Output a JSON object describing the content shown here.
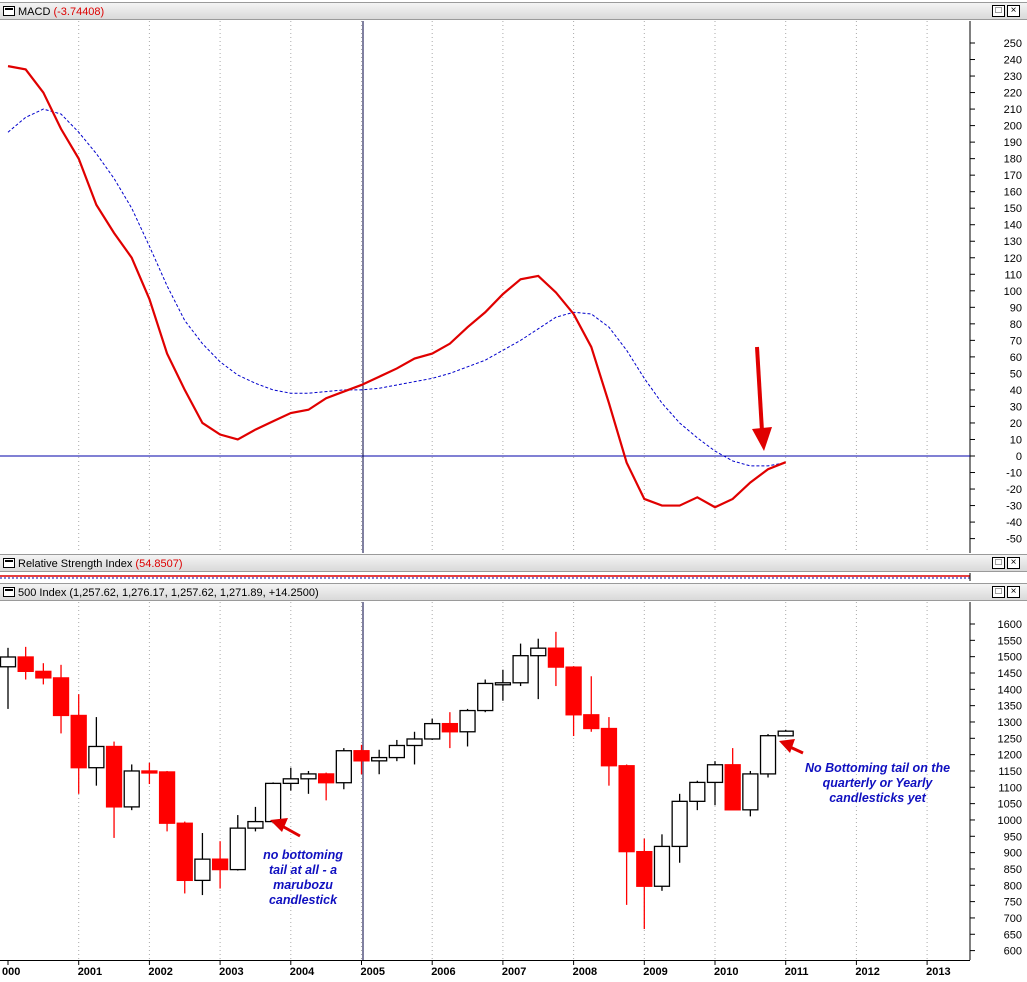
{
  "macd_panel": {
    "title": "MACD",
    "value": "(-3.74408)"
  },
  "rsi_panel": {
    "title": "Relative Strength Index",
    "value": "(54.8507)"
  },
  "spx_panel": {
    "title": "500 Index (1,257.62, 1,276.17, 1,257.62, 1,271.89, +14.2500)"
  },
  "window_buttons": {
    "restore": "□",
    "close": "×"
  },
  "annotations": {
    "left_note": [
      "no bottoming",
      "tail at all -  a",
      "marubozu",
      "candlestick"
    ],
    "right_note": [
      "No Bottoming tail on the",
      "quarterly or Yearly",
      "candlesticks yet"
    ]
  },
  "colors": {
    "bull": "#ffffff",
    "bear": "#ff0000",
    "macd_line": "#e00000",
    "signal_line": "#0000cc",
    "zero_line": "#0000aa",
    "arrow": "#e00000",
    "note_text": "#1010c0"
  },
  "chart_data": [
    {
      "type": "line",
      "title": "MACD",
      "x_label_years": [
        "000",
        "2001",
        "2002",
        "2003",
        "2004",
        "2005",
        "2006",
        "2007",
        "2008",
        "2009",
        "2010",
        "2011",
        "2012",
        "2013"
      ],
      "ylim": [
        -55,
        260
      ],
      "yticks": [
        250,
        240,
        230,
        220,
        210,
        200,
        190,
        180,
        170,
        160,
        150,
        140,
        130,
        120,
        110,
        100,
        90,
        80,
        70,
        60,
        50,
        40,
        30,
        20,
        10,
        0,
        -10,
        -20,
        -30,
        -40,
        -50
      ],
      "series": [
        {
          "name": "MACD",
          "x": [
            2000.0,
            2000.25,
            2000.5,
            2000.75,
            2001.0,
            2001.25,
            2001.5,
            2001.75,
            2002.0,
            2002.25,
            2002.5,
            2002.75,
            2003.0,
            2003.25,
            2003.5,
            2003.75,
            2004.0,
            2004.25,
            2004.5,
            2004.75,
            2005.0,
            2005.25,
            2005.5,
            2005.75,
            2006.0,
            2006.25,
            2006.5,
            2006.75,
            2007.0,
            2007.25,
            2007.5,
            2007.75,
            2008.0,
            2008.25,
            2008.5,
            2008.75,
            2009.0,
            2009.25,
            2009.5,
            2009.75,
            2010.0,
            2010.25,
            2010.5,
            2010.75,
            2011.0
          ],
          "values": [
            236,
            234,
            220,
            198,
            180,
            152,
            135,
            120,
            95,
            62,
            40,
            20,
            13,
            10,
            16,
            21,
            26,
            28,
            35,
            39,
            43,
            48,
            53,
            59,
            62,
            68,
            78,
            87,
            98,
            107,
            109,
            99,
            86,
            66,
            32,
            -4,
            -26,
            -30,
            -30,
            -25,
            -31,
            -26,
            -16,
            -8,
            -3.74
          ]
        },
        {
          "name": "Signal",
          "x": [
            2000.0,
            2000.25,
            2000.5,
            2000.75,
            2001.0,
            2001.25,
            2001.5,
            2001.75,
            2002.0,
            2002.25,
            2002.5,
            2002.75,
            2003.0,
            2003.25,
            2003.5,
            2003.75,
            2004.0,
            2004.25,
            2004.5,
            2004.75,
            2005.0,
            2005.25,
            2005.5,
            2005.75,
            2006.0,
            2006.25,
            2006.5,
            2006.75,
            2007.0,
            2007.25,
            2007.5,
            2007.75,
            2008.0,
            2008.25,
            2008.5,
            2008.75,
            2009.0,
            2009.25,
            2009.5,
            2009.75,
            2010.0,
            2010.25,
            2010.5,
            2010.75,
            2011.0
          ],
          "values": [
            196,
            205,
            210,
            207,
            196,
            183,
            168,
            150,
            127,
            103,
            82,
            68,
            57,
            49,
            44,
            40,
            38,
            38,
            39,
            40,
            40,
            41,
            43,
            45,
            47,
            50,
            54,
            58,
            64,
            70,
            77,
            84,
            87,
            86,
            78,
            64,
            47,
            32,
            20,
            11,
            3,
            -3,
            -6,
            -6,
            -4
          ]
        }
      ],
      "zero_line": 0,
      "annotation": "red arrow pointing to MACD crossover near 2011"
    },
    {
      "type": "line",
      "title": "Relative Strength Index",
      "value": 54.8507,
      "note": "panel collapsed"
    },
    {
      "type": "candlestick",
      "title": "500 Index",
      "ylim": [
        580,
        1640
      ],
      "yticks": [
        1600,
        1550,
        1500,
        1450,
        1400,
        1350,
        1300,
        1250,
        1200,
        1150,
        1100,
        1050,
        1000,
        950,
        900,
        850,
        800,
        750,
        700,
        650,
        600
      ],
      "x_label_years": [
        "000",
        "2001",
        "2002",
        "2003",
        "2004",
        "2005",
        "2006",
        "2007",
        "2008",
        "2009",
        "2010",
        "2011",
        "2012",
        "2013"
      ],
      "ohlc": [
        {
          "t": 2000.0,
          "o": 1469,
          "h": 1527,
          "l": 1340,
          "c": 1499
        },
        {
          "t": 2000.25,
          "o": 1499,
          "h": 1530,
          "l": 1430,
          "c": 1455
        },
        {
          "t": 2000.5,
          "o": 1455,
          "h": 1480,
          "l": 1415,
          "c": 1435
        },
        {
          "t": 2000.75,
          "o": 1435,
          "h": 1475,
          "l": 1265,
          "c": 1320
        },
        {
          "t": 2001.0,
          "o": 1320,
          "h": 1385,
          "l": 1080,
          "c": 1160
        },
        {
          "t": 2001.25,
          "o": 1160,
          "h": 1315,
          "l": 1105,
          "c": 1225
        },
        {
          "t": 2001.5,
          "o": 1225,
          "h": 1240,
          "l": 945,
          "c": 1040
        },
        {
          "t": 2001.75,
          "o": 1040,
          "h": 1170,
          "l": 1030,
          "c": 1150
        },
        {
          "t": 2002.0,
          "o": 1150,
          "h": 1175,
          "l": 1110,
          "c": 1147
        },
        {
          "t": 2002.25,
          "o": 1147,
          "h": 1150,
          "l": 965,
          "c": 990
        },
        {
          "t": 2002.5,
          "o": 990,
          "h": 995,
          "l": 775,
          "c": 815
        },
        {
          "t": 2002.75,
          "o": 815,
          "h": 960,
          "l": 770,
          "c": 880
        },
        {
          "t": 2003.0,
          "o": 880,
          "h": 935,
          "l": 790,
          "c": 848
        },
        {
          "t": 2003.25,
          "o": 848,
          "h": 1015,
          "l": 845,
          "c": 975
        },
        {
          "t": 2003.5,
          "o": 975,
          "h": 1040,
          "l": 965,
          "c": 995
        },
        {
          "t": 2003.75,
          "o": 995,
          "h": 1115,
          "l": 990,
          "c": 1112
        },
        {
          "t": 2004.0,
          "o": 1112,
          "h": 1160,
          "l": 1090,
          "c": 1126
        },
        {
          "t": 2004.25,
          "o": 1126,
          "h": 1150,
          "l": 1080,
          "c": 1141
        },
        {
          "t": 2004.5,
          "o": 1141,
          "h": 1145,
          "l": 1060,
          "c": 1114
        },
        {
          "t": 2004.75,
          "o": 1114,
          "h": 1220,
          "l": 1094,
          "c": 1212
        },
        {
          "t": 2005.0,
          "o": 1212,
          "h": 1230,
          "l": 1140,
          "c": 1181
        },
        {
          "t": 2005.25,
          "o": 1181,
          "h": 1215,
          "l": 1140,
          "c": 1191
        },
        {
          "t": 2005.5,
          "o": 1191,
          "h": 1245,
          "l": 1180,
          "c": 1228
        },
        {
          "t": 2005.75,
          "o": 1228,
          "h": 1270,
          "l": 1170,
          "c": 1248
        },
        {
          "t": 2006.0,
          "o": 1248,
          "h": 1310,
          "l": 1245,
          "c": 1295
        },
        {
          "t": 2006.25,
          "o": 1295,
          "h": 1330,
          "l": 1220,
          "c": 1270
        },
        {
          "t": 2006.5,
          "o": 1270,
          "h": 1340,
          "l": 1225,
          "c": 1335
        },
        {
          "t": 2006.75,
          "o": 1335,
          "h": 1430,
          "l": 1330,
          "c": 1418
        },
        {
          "t": 2007.0,
          "o": 1418,
          "h": 1460,
          "l": 1365,
          "c": 1420
        },
        {
          "t": 2007.25,
          "o": 1420,
          "h": 1540,
          "l": 1410,
          "c": 1503
        },
        {
          "t": 2007.5,
          "o": 1503,
          "h": 1555,
          "l": 1370,
          "c": 1526
        },
        {
          "t": 2007.75,
          "o": 1526,
          "h": 1576,
          "l": 1410,
          "c": 1468
        },
        {
          "t": 2008.0,
          "o": 1468,
          "h": 1471,
          "l": 1257,
          "c": 1322
        },
        {
          "t": 2008.25,
          "o": 1322,
          "h": 1440,
          "l": 1270,
          "c": 1280
        },
        {
          "t": 2008.5,
          "o": 1280,
          "h": 1315,
          "l": 1105,
          "c": 1166
        },
        {
          "t": 2008.75,
          "o": 1166,
          "h": 1170,
          "l": 740,
          "c": 903
        },
        {
          "t": 2009.0,
          "o": 903,
          "h": 943,
          "l": 666,
          "c": 797
        },
        {
          "t": 2009.25,
          "o": 797,
          "h": 956,
          "l": 783,
          "c": 919
        },
        {
          "t": 2009.5,
          "o": 919,
          "h": 1080,
          "l": 869,
          "c": 1057
        },
        {
          "t": 2009.75,
          "o": 1057,
          "h": 1120,
          "l": 1030,
          "c": 1115
        },
        {
          "t": 2010.0,
          "o": 1115,
          "h": 1180,
          "l": 1045,
          "c": 1169
        },
        {
          "t": 2010.25,
          "o": 1169,
          "h": 1220,
          "l": 1040,
          "c": 1031
        },
        {
          "t": 2010.5,
          "o": 1031,
          "h": 1150,
          "l": 1011,
          "c": 1141
        },
        {
          "t": 2010.75,
          "o": 1141,
          "h": 1263,
          "l": 1130,
          "c": 1258
        },
        {
          "t": 2011.0,
          "o": 1257.62,
          "h": 1276.17,
          "l": 1257.62,
          "c": 1271.89
        }
      ]
    }
  ]
}
